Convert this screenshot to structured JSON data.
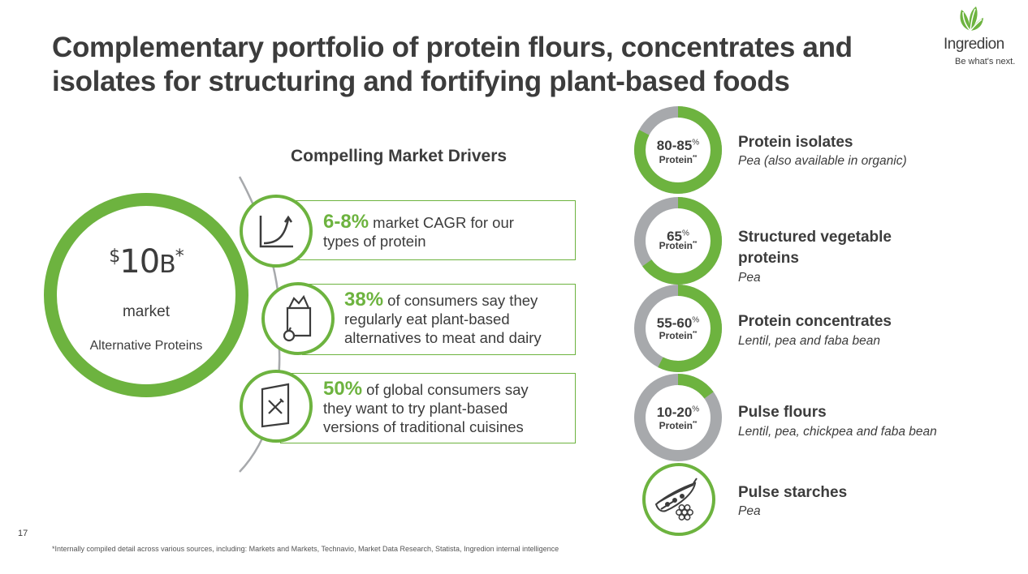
{
  "title": {
    "line1": "Complementary portfolio of protein flours, concentrates and",
    "line2": "isolates for structuring and fortifying plant-based foods"
  },
  "logo": {
    "name": "Ingredion",
    "tagline": "Be what's next.",
    "icon": "leaf-logo-icon",
    "color": "#6db33f"
  },
  "market": {
    "currency_prefix": "$",
    "value": "10",
    "unit": "B",
    "asterisk": "*",
    "label": "market",
    "sublabel": "Alternative Proteins"
  },
  "drivers": {
    "heading": "Compelling Market Drivers",
    "items": [
      {
        "icon": "growth-chart-icon",
        "pct": "6-8%",
        "text1": " market CAGR for our",
        "text2": "types of protein",
        "text3": ""
      },
      {
        "icon": "grocery-bag-icon",
        "pct": "38%",
        "text1": " of consumers say they",
        "text2": "regularly eat plant-based",
        "text3": "alternatives to meat and dairy"
      },
      {
        "icon": "menu-fork-knife-icon",
        "pct": "50%",
        "text1": " of global consumers say",
        "text2": "they want to try plant-based",
        "text3": "versions of traditional cuisines"
      }
    ]
  },
  "portfolio": [
    {
      "pct": "80-85",
      "pct_sign": "%",
      "protein_label": "Protein",
      "stars": "**",
      "fill": 0.825,
      "name_lines": [
        "Protein isolates"
      ],
      "desc": "Pea (also available in organic)"
    },
    {
      "pct": "65",
      "pct_sign": "%",
      "protein_label": "Protein",
      "stars": "**",
      "fill": 0.65,
      "name_lines": [
        "Structured vegetable",
        "proteins"
      ],
      "desc": "Pea"
    },
    {
      "pct": "55-60",
      "pct_sign": "%",
      "protein_label": "Protein",
      "stars": "**",
      "fill": 0.575,
      "name_lines": [
        "Protein concentrates"
      ],
      "desc": "Lentil, pea and faba bean"
    },
    {
      "pct": "10-20",
      "pct_sign": "%",
      "protein_label": "Protein",
      "stars": "**",
      "fill": 0.15,
      "name_lines": [
        "Pulse flours"
      ],
      "desc": "Lentil, pea, chickpea and faba bean"
    },
    {
      "icon": "pea-pod-icon",
      "name_lines": [
        "Pulse starches"
      ],
      "desc": "Pea"
    }
  ],
  "colors": {
    "green": "#6db33f",
    "gray": "#a7a9ac",
    "text": "#3c3c3c"
  },
  "page_number": "17",
  "footnote": "*Internally compiled detail across various sources, including: Markets and Markets, Technavio, Market Data Research, Statista, Ingredion internal intelligence"
}
